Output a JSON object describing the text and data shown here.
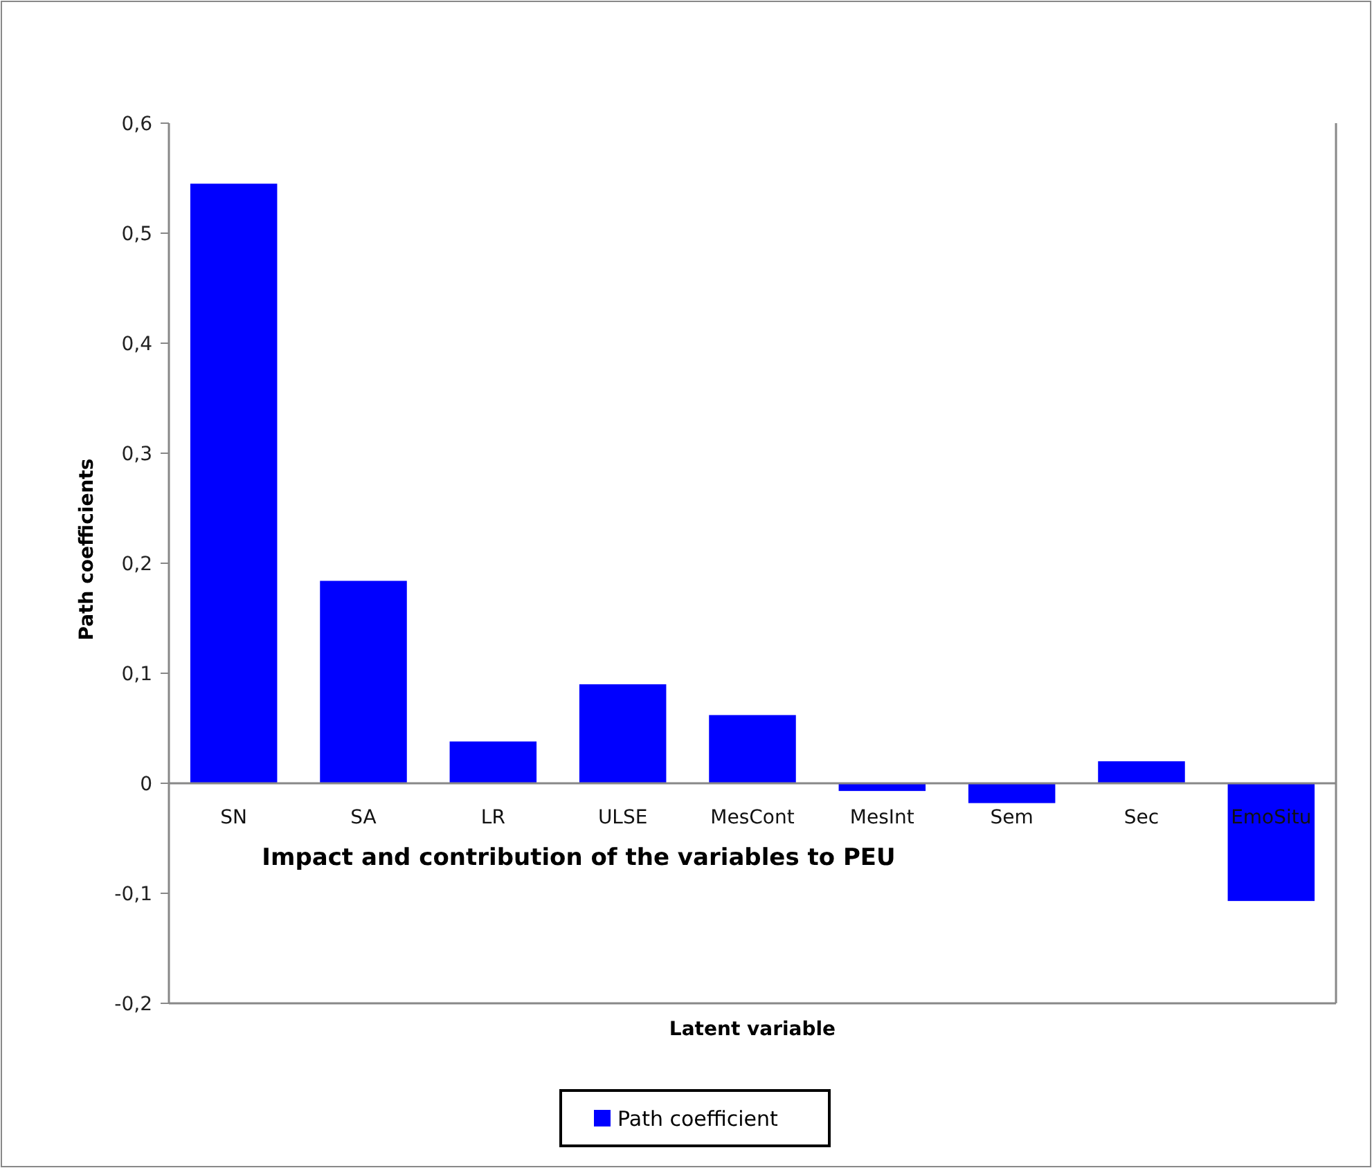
{
  "chart_data": {
    "type": "bar",
    "title": "Impact and contribution of the variables to PEU",
    "xlabel": "Latent variable",
    "ylabel": "Path coefficients",
    "categories": [
      "SN",
      "SA",
      "LR",
      "ULSE",
      "MesCont",
      "MesInt",
      "Sem",
      "Sec",
      "EmoSitu"
    ],
    "series": [
      {
        "name": "Path coefficient",
        "color": "#0000ff",
        "values": [
          0.545,
          0.184,
          0.038,
          0.09,
          0.062,
          -0.007,
          -0.018,
          0.02,
          -0.107
        ]
      }
    ],
    "ylim": [
      -0.2,
      0.6
    ],
    "yticks": [
      {
        "value": -0.2,
        "label": "-0,2"
      },
      {
        "value": -0.1,
        "label": "-0,1"
      },
      {
        "value": 0,
        "label": "0"
      },
      {
        "value": 0.1,
        "label": "0,1"
      },
      {
        "value": 0.2,
        "label": "0,2"
      },
      {
        "value": 0.3,
        "label": "0,3"
      },
      {
        "value": 0.4,
        "label": "0,4"
      },
      {
        "value": 0.5,
        "label": "0,5"
      },
      {
        "value": 0.6,
        "label": "0,6"
      }
    ],
    "grid": false,
    "legend": "bottom"
  }
}
